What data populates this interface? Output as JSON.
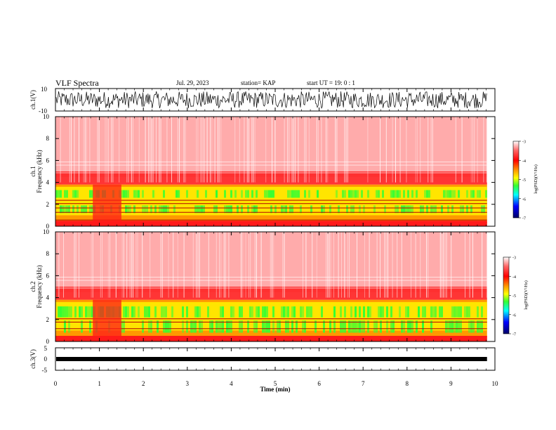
{
  "header": {
    "title": "VLF Spectra",
    "date": "Jul. 29, 2023",
    "station": "station= KAP",
    "start": "start UT =  19: 0  : 1"
  },
  "chart_data": [
    {
      "type": "line",
      "id": "ch1-waveform",
      "ylabel": "ch.1(V)",
      "ylim": [
        -10,
        10
      ],
      "yticks": [
        "10",
        "-10"
      ],
      "xlim": [
        0,
        10
      ],
      "description_values": "dense oscillation roughly between -8 and 8 V"
    },
    {
      "type": "heatmap",
      "id": "ch1-spectrogram",
      "ylabel_top": "ch.1",
      "ylabel": "Frequency (kHz)",
      "ylim": [
        0,
        10
      ],
      "yticks": [
        "0",
        "2",
        "4",
        "6",
        "8",
        "10"
      ],
      "xlim": [
        0,
        10
      ],
      "colorbar": {
        "label": "log(PSD)(V²/Hz)",
        "range": [
          -7,
          -3
        ],
        "ticks": [
          "-3",
          "-4",
          "-5",
          "-6",
          "-7"
        ]
      }
    },
    {
      "type": "heatmap",
      "id": "ch2-spectrogram",
      "ylabel_top": "ch.2",
      "ylabel": "Frequency (kHz)",
      "ylim": [
        0,
        10
      ],
      "yticks": [
        "0",
        "2",
        "4",
        "6",
        "8",
        "10"
      ],
      "xlim": [
        0,
        10
      ],
      "colorbar": {
        "label": "log(PSD)(V²/Hz)",
        "range": [
          -7,
          -3
        ],
        "ticks": [
          "-3",
          "-4",
          "-5",
          "-6",
          "-7"
        ]
      }
    },
    {
      "type": "line",
      "id": "ch3-waveform",
      "ylabel": "ch.3(V)",
      "ylim": [
        -5,
        5
      ],
      "yticks": [
        "5",
        "0",
        "-5"
      ],
      "xlim": [
        0,
        10
      ],
      "description_values": "nearly constant band around -1 V"
    }
  ],
  "xaxis": {
    "label": "Time (min)",
    "ticks": [
      "0",
      "1",
      "2",
      "3",
      "4",
      "5",
      "6",
      "7",
      "8",
      "9",
      "10"
    ],
    "data_end_min": 9.82
  },
  "colors": {
    "red": "#ff1a1a",
    "orange": "#ff9900",
    "yellow": "#ffff00",
    "green": "#33ff33",
    "cyan": "#00ffff",
    "blue": "#0000ff",
    "navy": "#000066"
  }
}
